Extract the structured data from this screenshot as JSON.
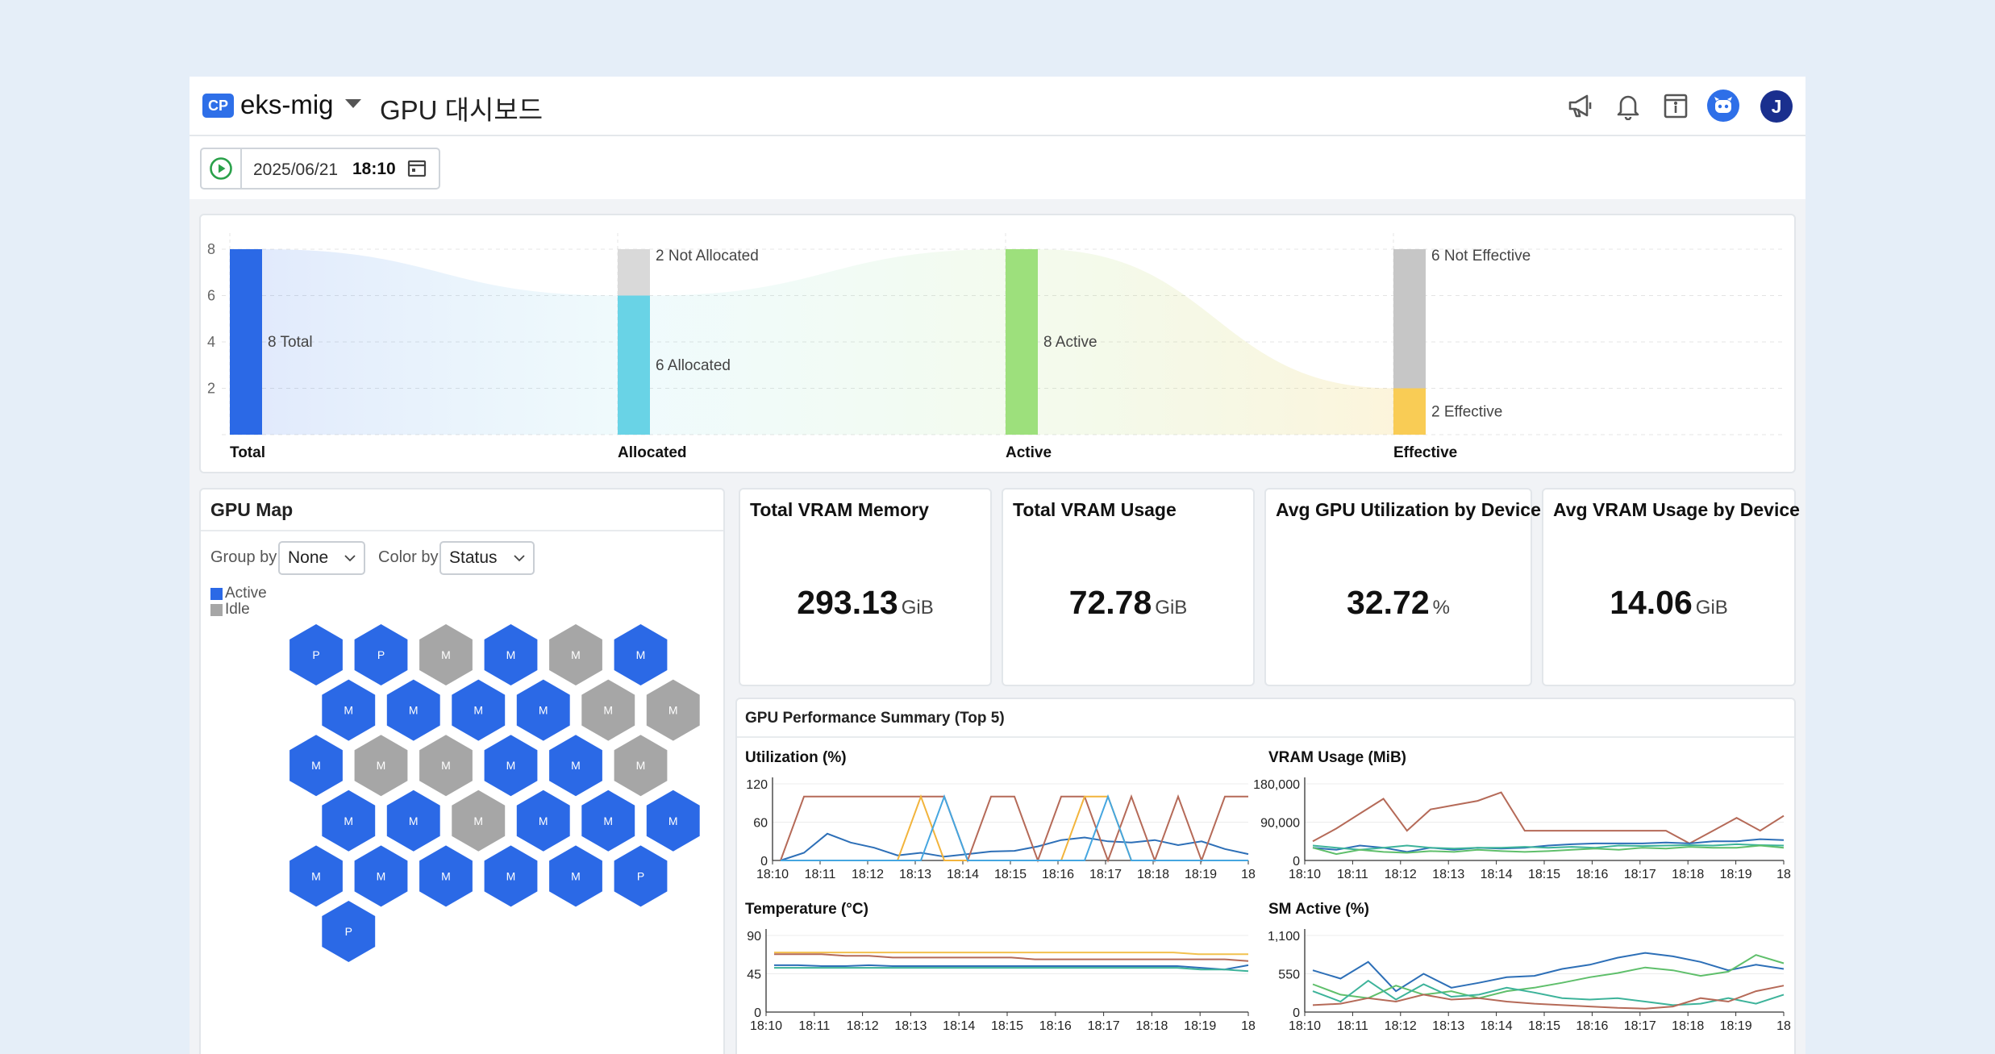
{
  "header": {
    "badge": "CP",
    "cluster": "eks-mig",
    "title": "GPU 대시보드"
  },
  "toolbar": {
    "date": "2025/06/21",
    "time": "18:10"
  },
  "user": {
    "initial": "J"
  },
  "colors": {
    "total": "#2b69e6",
    "allocated": "#69d3e6",
    "not_allocated": "#d9d9d9",
    "active": "#9de07c",
    "effective": "#f9cc55",
    "not_effective": "#c6c6c6",
    "hex_active": "#2b69e6",
    "hex_idle": "#a6a6a6"
  },
  "funnel": {
    "y_ticks": [
      "8",
      "6",
      "4",
      "2"
    ],
    "ylim": [
      0,
      8
    ],
    "stages": [
      {
        "name": "Total",
        "segments": [
          {
            "value": 8,
            "label": "8 Total",
            "color": "#2b69e6"
          }
        ]
      },
      {
        "name": "Allocated",
        "segments": [
          {
            "value": 6,
            "label": "6 Allocated",
            "color": "#69d3e6"
          },
          {
            "value": 2,
            "label": "2 Not Allocated",
            "color": "#d9d9d9"
          }
        ]
      },
      {
        "name": "Active",
        "segments": [
          {
            "value": 8,
            "label": "8 Active",
            "color": "#9de07c"
          }
        ]
      },
      {
        "name": "Effective",
        "segments": [
          {
            "value": 2,
            "label": "2 Effective",
            "color": "#f9cc55"
          },
          {
            "value": 6,
            "label": "6 Not Effective",
            "color": "#c6c6c6"
          }
        ]
      }
    ]
  },
  "gpu_map": {
    "title": "GPU Map",
    "group_by_label": "Group by",
    "group_by_value": "None",
    "color_by_label": "Color by",
    "color_by_value": "Status",
    "legend": [
      {
        "label": "Active",
        "color": "#2b69e6"
      },
      {
        "label": "Idle",
        "color": "#a6a6a6"
      }
    ],
    "rows": [
      [
        {
          "t": "P",
          "s": "active"
        },
        {
          "t": "P",
          "s": "active"
        },
        {
          "t": "M",
          "s": "idle"
        },
        {
          "t": "M",
          "s": "active"
        },
        {
          "t": "M",
          "s": "idle"
        },
        {
          "t": "M",
          "s": "active"
        }
      ],
      [
        {
          "t": "M",
          "s": "active"
        },
        {
          "t": "M",
          "s": "active"
        },
        {
          "t": "M",
          "s": "active"
        },
        {
          "t": "M",
          "s": "active"
        },
        {
          "t": "M",
          "s": "idle"
        },
        {
          "t": "M",
          "s": "idle"
        }
      ],
      [
        {
          "t": "M",
          "s": "active"
        },
        {
          "t": "M",
          "s": "idle"
        },
        {
          "t": "M",
          "s": "idle"
        },
        {
          "t": "M",
          "s": "active"
        },
        {
          "t": "M",
          "s": "active"
        },
        {
          "t": "M",
          "s": "idle"
        }
      ],
      [
        {
          "t": "M",
          "s": "active"
        },
        {
          "t": "M",
          "s": "active"
        },
        {
          "t": "M",
          "s": "idle"
        },
        {
          "t": "M",
          "s": "active"
        },
        {
          "t": "M",
          "s": "active"
        },
        {
          "t": "M",
          "s": "active"
        }
      ],
      [
        {
          "t": "M",
          "s": "active"
        },
        {
          "t": "M",
          "s": "active"
        },
        {
          "t": "M",
          "s": "active"
        },
        {
          "t": "M",
          "s": "active"
        },
        {
          "t": "M",
          "s": "active"
        },
        {
          "t": "P",
          "s": "active"
        }
      ],
      [
        {
          "t": "P",
          "s": "active"
        }
      ]
    ]
  },
  "cards": [
    {
      "title": "Total VRAM Memory",
      "value": "293.13",
      "unit": "GiB"
    },
    {
      "title": "Total VRAM Usage",
      "value": "72.78",
      "unit": "GiB"
    },
    {
      "title": "Avg GPU Utilization by Device",
      "value": "32.72",
      "unit": "%"
    },
    {
      "title": "Avg VRAM Usage by Device",
      "value": "14.06",
      "unit": "GiB"
    }
  ],
  "perf": {
    "title": "GPU Performance Summary (Top 5)",
    "x_ticks": [
      "18:10",
      "18:11",
      "18:12",
      "18:13",
      "18:14",
      "18:15",
      "18:16",
      "18:17",
      "18:18",
      "18:19",
      "18"
    ],
    "charts": [
      {
        "title": "Utilization (%)",
        "y_ticks": [
          "120",
          "60",
          "0"
        ],
        "ylim": [
          0,
          120
        ],
        "series": [
          {
            "color": "#2d6fb7",
            "values": [
              0,
              12,
              42,
              28,
              20,
              8,
              12,
              6,
              10,
              14,
              15,
              22,
              32,
              36,
              30,
              28,
              32,
              24,
              30,
              18,
              10
            ]
          },
          {
            "color": "#b56a58",
            "values": [
              0,
              100,
              100,
              100,
              100,
              100,
              100,
              100,
              0,
              100,
              100,
              0,
              100,
              100,
              0,
              100,
              0,
              100,
              0,
              100,
              100
            ]
          },
          {
            "color": "#f2b43c",
            "values": [
              0,
              0,
              0,
              0,
              0,
              0,
              100,
              0,
              0,
              0,
              0,
              0,
              0,
              100,
              100,
              0,
              0,
              0,
              0,
              0,
              0
            ]
          },
          {
            "color": "#45a6e0",
            "values": [
              0,
              0,
              0,
              0,
              0,
              0,
              0,
              100,
              0,
              0,
              0,
              0,
              0,
              0,
              100,
              0,
              0,
              0,
              0,
              0,
              0
            ]
          }
        ]
      },
      {
        "title": "VRAM Usage (MiB)",
        "y_ticks": [
          "180,000",
          "90,000",
          "0"
        ],
        "ylim": [
          0,
          180000
        ],
        "series": [
          {
            "color": "#b56a58",
            "values": [
              45000,
              75000,
              110000,
              145000,
              70000,
              120000,
              130000,
              140000,
              160000,
              70000,
              70000,
              70000,
              70000,
              70000,
              70000,
              70000,
              40000,
              70000,
              100000,
              70000,
              105000
            ]
          },
          {
            "color": "#2d6fb7",
            "values": [
              30000,
              25000,
              35000,
              30000,
              20000,
              30000,
              25000,
              30000,
              28000,
              30000,
              35000,
              38000,
              40000,
              40000,
              40000,
              42000,
              40000,
              45000,
              45000,
              50000,
              48000
            ]
          },
          {
            "color": "#3db39a",
            "values": [
              35000,
              30000,
              25000,
              30000,
              35000,
              30000,
              28000,
              30000,
              30000,
              32000,
              30000,
              32000,
              30000,
              35000,
              34000,
              35000,
              36000,
              35000,
              38000,
              36000,
              35000
            ]
          },
          {
            "color": "#5fbf6b",
            "values": [
              30000,
              15000,
              25000,
              20000,
              18000,
              22000,
              20000,
              25000,
              22000,
              20000,
              22000,
              25000,
              28000,
              25000,
              30000,
              28000,
              32000,
              30000,
              30000,
              35000,
              30000
            ]
          }
        ]
      },
      {
        "title": "Temperature (°C)",
        "y_ticks": [
          "90",
          "45",
          "0"
        ],
        "ylim": [
          0,
          90
        ],
        "series": [
          {
            "color": "#f2c14e",
            "values": [
              70,
              70,
              70,
              70,
              70,
              70,
              70,
              70,
              70,
              70,
              70,
              70,
              70,
              70,
              70,
              70,
              70,
              68,
              68,
              68
            ]
          },
          {
            "color": "#b56a58",
            "values": [
              68,
              68,
              68,
              66,
              66,
              64,
              64,
              64,
              64,
              64,
              64,
              62,
              62,
              62,
              62,
              62,
              62,
              62,
              62,
              62,
              60
            ]
          },
          {
            "color": "#2d6fb7",
            "values": [
              55,
              55,
              54,
              54,
              55,
              54,
              54,
              54,
              54,
              54,
              54,
              54,
              54,
              54,
              54,
              54,
              54,
              54,
              52,
              50,
              55
            ]
          },
          {
            "color": "#3db39a",
            "values": [
              52,
              52,
              52,
              52,
              52,
              52,
              52,
              52,
              52,
              52,
              52,
              52,
              52,
              52,
              52,
              52,
              52,
              52,
              50,
              50,
              48
            ]
          }
        ]
      },
      {
        "title": "SM Active (%)",
        "y_ticks": [
          "1,100",
          "550",
          "0"
        ],
        "ylim": [
          0,
          1100
        ],
        "series": [
          {
            "color": "#2d6fb7",
            "values": [
              600,
              480,
              720,
              300,
              550,
              350,
              420,
              500,
              520,
              620,
              680,
              780,
              850,
              800,
              720,
              600,
              680,
              620
            ]
          },
          {
            "color": "#5fbf6b",
            "values": [
              400,
              250,
              200,
              380,
              250,
              300,
              200,
              300,
              350,
              420,
              500,
              560,
              640,
              600,
              520,
              580,
              820,
              700
            ]
          },
          {
            "color": "#3db39a",
            "values": [
              300,
              150,
              450,
              180,
              400,
              220,
              250,
              350,
              280,
              200,
              180,
              200,
              150,
              100,
              120,
              200,
              120,
              250
            ]
          },
          {
            "color": "#b56a58",
            "values": [
              100,
              120,
              200,
              150,
              250,
              180,
              200,
              150,
              120,
              100,
              80,
              60,
              50,
              80,
              200,
              150,
              300,
              380
            ]
          }
        ]
      }
    ]
  }
}
